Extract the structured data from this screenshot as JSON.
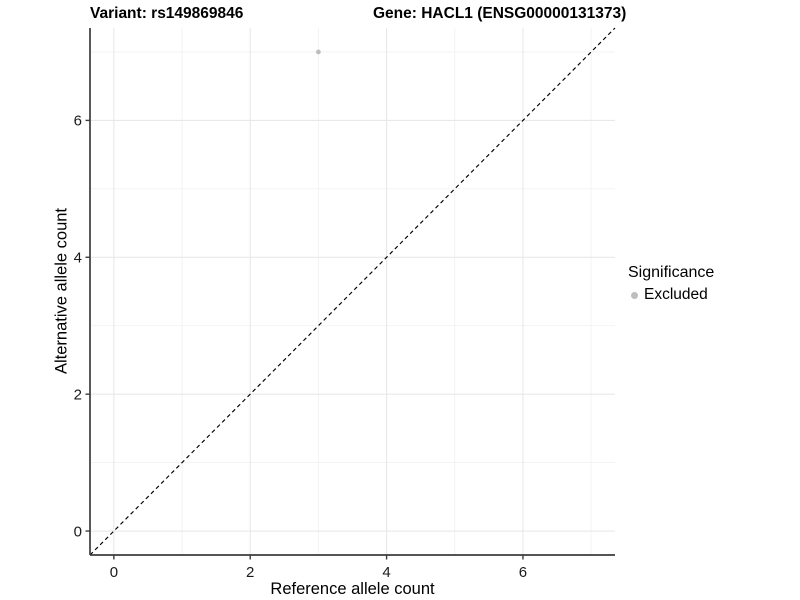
{
  "title": {
    "variant": "Variant: rs149869846",
    "gene": "Gene: HACL1 (ENSG00000131373)"
  },
  "axes": {
    "xlabel": "Reference allele count",
    "ylabel": "Alternative allele count"
  },
  "legend": {
    "title": "Significance",
    "items": [
      {
        "label": "Excluded",
        "color": "#bebebe"
      }
    ]
  },
  "colors": {
    "background": "#ffffff",
    "axis_line": "#3c3c3c",
    "major_grid": "#e8e8e8",
    "minor_grid": "#f2f2f2",
    "identity_line": "#000000",
    "point": "#bebebe",
    "tick_text": "#1a1a1a"
  },
  "chart_data": {
    "type": "scatter",
    "title": "Variant: rs149869846    Gene: HACL1 (ENSG00000131373)",
    "xlabel": "Reference allele count",
    "ylabel": "Alternative allele count",
    "points": [
      {
        "x": 3,
        "y": 7,
        "series": "Excluded"
      }
    ],
    "series": [
      {
        "name": "Excluded",
        "color": "#bebebe"
      }
    ],
    "identity_line": {
      "style": "dashed",
      "slope": 1,
      "intercept": 0
    },
    "x_ticks": [
      0,
      2,
      4,
      6
    ],
    "y_ticks": [
      0,
      2,
      4,
      6
    ],
    "x_minor_ticks": [
      1,
      3,
      5,
      7
    ],
    "y_minor_ticks": [
      1,
      3,
      5,
      7
    ],
    "xlim": [
      -0.35,
      7.35
    ],
    "ylim": [
      -0.35,
      7.35
    ],
    "grid": true,
    "legend_position": "right"
  }
}
